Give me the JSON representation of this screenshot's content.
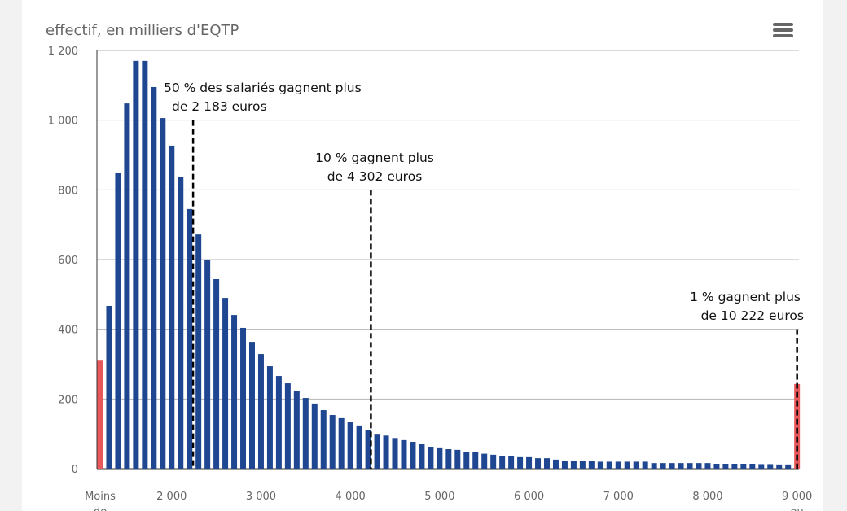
{
  "chart_data": {
    "type": "bar",
    "title": "",
    "ylabel": "effectif, en milliers d'EQTP",
    "xlabel": "",
    "ylim": [
      0,
      1200
    ],
    "yticks": [
      0,
      200,
      400,
      600,
      800,
      1000,
      1200
    ],
    "ytick_labels": [
      "0",
      "200",
      "400",
      "600",
      "800",
      "1 000",
      "1 200"
    ],
    "xticks": [
      {
        "value": 1200,
        "lines": [
          "Moins",
          "de"
        ]
      },
      {
        "value": 2000,
        "lines": [
          "2 000"
        ]
      },
      {
        "value": 3000,
        "lines": [
          "3 000"
        ]
      },
      {
        "value": 4000,
        "lines": [
          "4 000"
        ]
      },
      {
        "value": 5000,
        "lines": [
          "5 000"
        ]
      },
      {
        "value": 6000,
        "lines": [
          "6 000"
        ]
      },
      {
        "value": 7000,
        "lines": [
          "7 000"
        ]
      },
      {
        "value": 8000,
        "lines": [
          "8 000"
        ]
      },
      {
        "value": 9000,
        "lines": [
          "9 000",
          "ou"
        ]
      }
    ],
    "grid": true,
    "bar_color": "#1f4690",
    "edge_bar_color": "#e8585b",
    "x_start": 1200,
    "x_step": 100,
    "values": [
      310,
      467,
      848,
      1048,
      1170,
      1170,
      1095,
      1006,
      927,
      838,
      745,
      672,
      600,
      544,
      490,
      441,
      404,
      364,
      329,
      294,
      266,
      245,
      222,
      203,
      187,
      168,
      154,
      145,
      133,
      124,
      112,
      100,
      95,
      88,
      82,
      77,
      70,
      63,
      61,
      56,
      54,
      49,
      47,
      43,
      40,
      37,
      35,
      33,
      33,
      30,
      30,
      26,
      23,
      23,
      23,
      23,
      20,
      20,
      20,
      20,
      20,
      20,
      16,
      16,
      16,
      16,
      16,
      16,
      16,
      14,
      14,
      14,
      14,
      14,
      13,
      13,
      12,
      12,
      243
    ],
    "annotations": [
      {
        "x": 2240,
        "lines": [
          "50 % des salariés gagnent plus",
          "de 2 183 euros"
        ],
        "line_top": 1000
      },
      {
        "x": 4230,
        "lines": [
          "10 % gagnent plus",
          "de 4 302 euros"
        ],
        "line_top": 800
      },
      {
        "x": 9000,
        "lines": [
          "1 % gagnent plus",
          "de 10 222 euros"
        ],
        "line_top": 400
      }
    ]
  },
  "menu": {
    "icon": "hamburger-menu-icon"
  }
}
